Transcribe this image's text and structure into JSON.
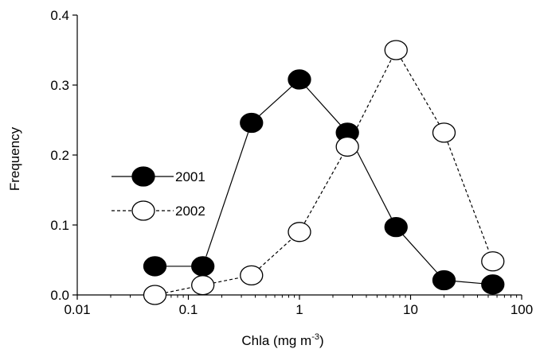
{
  "chart_data": {
    "type": "line",
    "title": "",
    "xlabel": "Chla (mg m",
    "xlabel_sup": "-3",
    "xlabel_close": ")",
    "ylabel": "Frequency",
    "xscale": "log",
    "xlim": [
      0.01,
      100
    ],
    "ylim": [
      0,
      0.4
    ],
    "grid": false,
    "legend_position": "center-left",
    "x_ticks": [
      {
        "value": 0.01,
        "label": "0.01"
      },
      {
        "value": 0.1,
        "label": "0.1"
      },
      {
        "value": 1,
        "label": "1"
      },
      {
        "value": 10,
        "label": "10"
      },
      {
        "value": 100,
        "label": "100"
      }
    ],
    "y_ticks": [
      {
        "value": 0,
        "label": "0.0"
      },
      {
        "value": 0.1,
        "label": "0.1"
      },
      {
        "value": 0.2,
        "label": "0.2"
      },
      {
        "value": 0.3,
        "label": "0.3"
      },
      {
        "value": 0.4,
        "label": "0.4"
      }
    ],
    "series": [
      {
        "name": "2001",
        "marker": "filled-circle",
        "line": "solid",
        "color": "#000000",
        "points": [
          {
            "x": 0.05,
            "y": 0.041
          },
          {
            "x": 0.135,
            "y": 0.041
          },
          {
            "x": 0.37,
            "y": 0.246
          },
          {
            "x": 1.0,
            "y": 0.308
          },
          {
            "x": 2.7,
            "y": 0.232
          },
          {
            "x": 7.4,
            "y": 0.097
          },
          {
            "x": 20,
            "y": 0.021
          },
          {
            "x": 55,
            "y": 0.015
          }
        ]
      },
      {
        "name": "2002",
        "marker": "open-circle",
        "line": "dashed",
        "color": "#000000",
        "points": [
          {
            "x": 0.05,
            "y": 0.0
          },
          {
            "x": 0.135,
            "y": 0.014
          },
          {
            "x": 0.37,
            "y": 0.028
          },
          {
            "x": 1.0,
            "y": 0.09
          },
          {
            "x": 2.7,
            "y": 0.212
          },
          {
            "x": 7.4,
            "y": 0.35
          },
          {
            "x": 20,
            "y": 0.232
          },
          {
            "x": 55,
            "y": 0.048
          }
        ]
      }
    ]
  }
}
